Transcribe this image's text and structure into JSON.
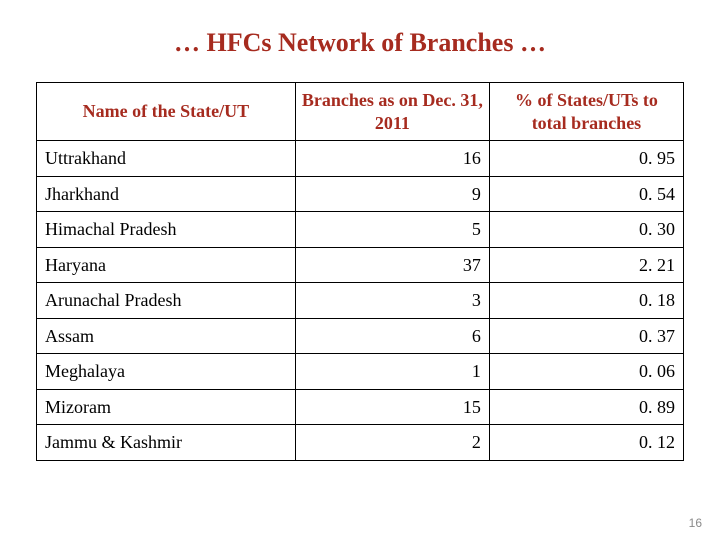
{
  "title": "… HFCs Network of Branches …",
  "page_number": "16",
  "colors": {
    "heading": "#a62b1f",
    "text": "#000000",
    "border": "#000000",
    "background": "#ffffff",
    "page_number": "#8a8a8a"
  },
  "typography": {
    "title_fontsize_pt": 20,
    "header_fontsize_pt": 14,
    "cell_fontsize_pt": 14,
    "font_family": "Palatino / Book Antiqua serif"
  },
  "table": {
    "type": "table",
    "column_widths_pct": [
      40,
      30,
      30
    ],
    "columns": [
      {
        "label": "Name of the State/UT",
        "align": "center"
      },
      {
        "label": "Branches as on Dec. 31, 2011",
        "align": "center"
      },
      {
        "label": "% of States/UTs to total branches",
        "align": "center"
      }
    ],
    "body_align": [
      "left",
      "right",
      "right"
    ],
    "rows": [
      {
        "name": "Uttrakhand",
        "branches": "16",
        "pct": "0. 95"
      },
      {
        "name": "Jharkhand",
        "branches": "9",
        "pct": "0. 54"
      },
      {
        "name": "Himachal Pradesh",
        "branches": "5",
        "pct": "0. 30"
      },
      {
        "name": "Haryana",
        "branches": "37",
        "pct": "2. 21"
      },
      {
        "name": "Arunachal Pradesh",
        "branches": "3",
        "pct": "0. 18"
      },
      {
        "name": "Assam",
        "branches": "6",
        "pct": "0. 37"
      },
      {
        "name": "Meghalaya",
        "branches": "1",
        "pct": "0. 06"
      },
      {
        "name": "Mizoram",
        "branches": "15",
        "pct": "0. 89"
      },
      {
        "name": "Jammu & Kashmir",
        "branches": "2",
        "pct": "0. 12"
      }
    ]
  }
}
